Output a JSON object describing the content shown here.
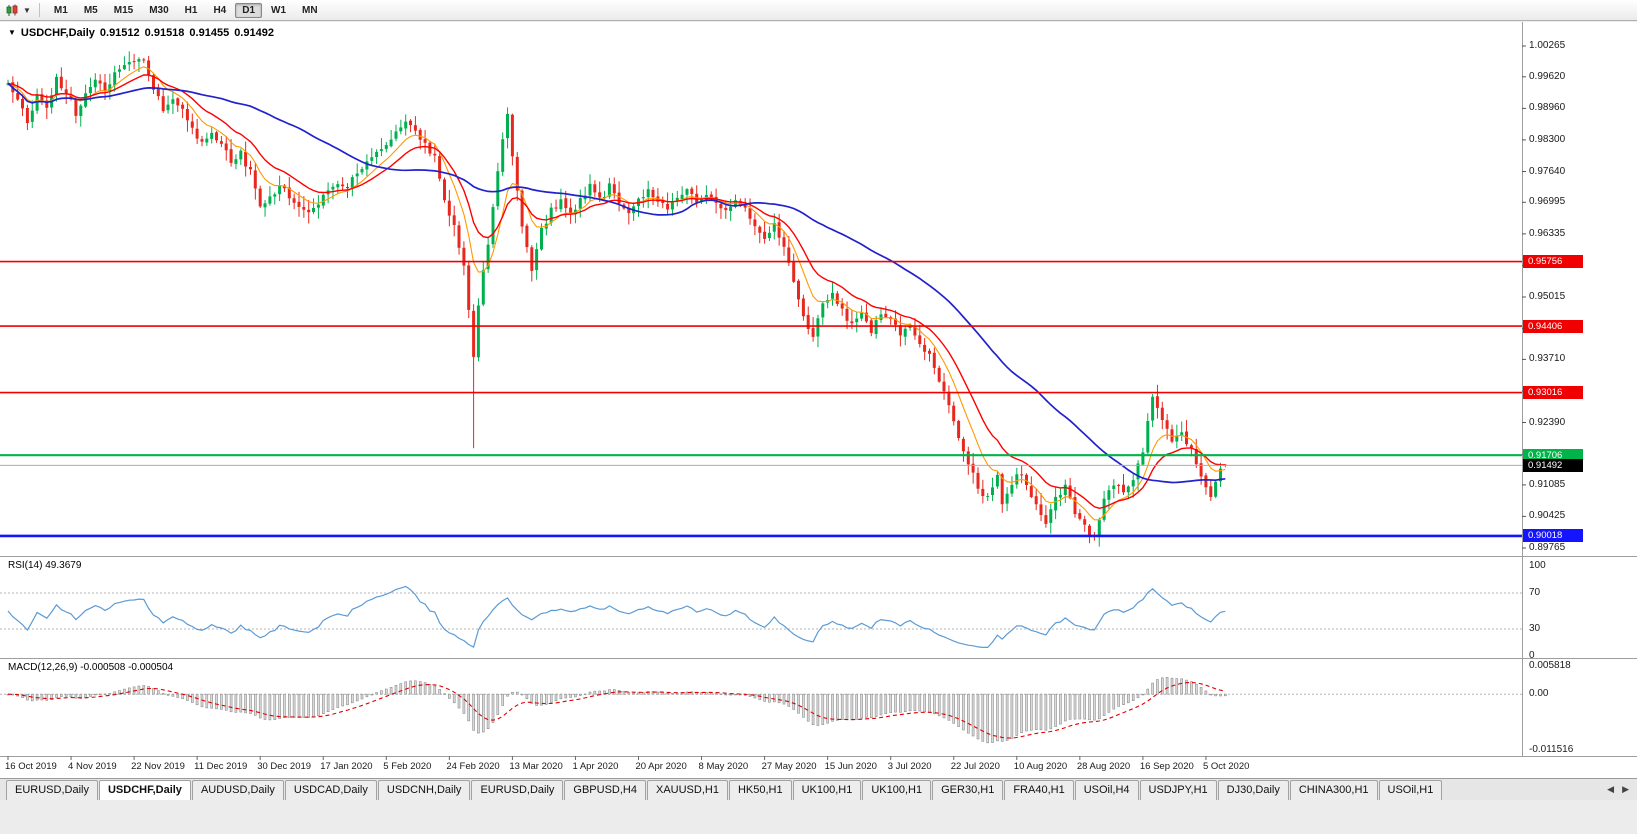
{
  "toolbar": {
    "timeframes": [
      "M1",
      "M5",
      "M15",
      "M30",
      "H1",
      "H4",
      "D1",
      "W1",
      "MN"
    ],
    "active_timeframe": "D1"
  },
  "chart": {
    "title": {
      "symbol": "USDCHF,Daily",
      "open": "0.91512",
      "high": "0.91518",
      "low": "0.91455",
      "close": "0.91492"
    },
    "price_axis": [
      "1.00265",
      "0.99620",
      "0.98960",
      "0.98300",
      "0.97640",
      "0.96995",
      "0.96335",
      "0.95675",
      "0.95015",
      "0.94355",
      "0.93710",
      "0.93050",
      "0.92390",
      "0.91730",
      "0.91085",
      "0.90425",
      "0.89765"
    ],
    "hlines": [
      {
        "label": "0.95756",
        "price": 0.95756,
        "color": "#F00000",
        "width": 1.6
      },
      {
        "label": "0.94406",
        "price": 0.94406,
        "color": "#F00000",
        "width": 1.6
      },
      {
        "label": "0.93016",
        "price": 0.93016,
        "color": "#F00000",
        "width": 1.6
      },
      {
        "label": "0.91706",
        "price": 0.91706,
        "color": "#00B44A",
        "width": 2.2
      },
      {
        "label": "0.90018",
        "price": 0.90018,
        "color": "#1414FF",
        "width": 2.6
      }
    ],
    "current_price": {
      "label": "0.91492",
      "price": 0.91492,
      "tag_bg": "#000000",
      "line_color": "#ABABAB"
    },
    "date_axis": [
      {
        "i": 0,
        "label": "16 Oct 2019"
      },
      {
        "i": 13,
        "label": "4 Nov 2019"
      },
      {
        "i": 26,
        "label": "22 Nov 2019"
      },
      {
        "i": 39,
        "label": "11 Dec 2019"
      },
      {
        "i": 52,
        "label": "30 Dec 2019"
      },
      {
        "i": 65,
        "label": "17 Jan 2020"
      },
      {
        "i": 78,
        "label": "5 Feb 2020"
      },
      {
        "i": 91,
        "label": "24 Feb 2020"
      },
      {
        "i": 104,
        "label": "13 Mar 2020"
      },
      {
        "i": 117,
        "label": "1 Apr 2020"
      },
      {
        "i": 130,
        "label": "20 Apr 2020"
      },
      {
        "i": 143,
        "label": "8 May 2020"
      },
      {
        "i": 156,
        "label": "27 May 2020"
      },
      {
        "i": 169,
        "label": "15 Jun 2020"
      },
      {
        "i": 182,
        "label": "3 Jul 2020"
      },
      {
        "i": 195,
        "label": "22 Jul 2020"
      },
      {
        "i": 208,
        "label": "10 Aug 2020"
      },
      {
        "i": 221,
        "label": "28 Aug 2020"
      },
      {
        "i": 234,
        "label": "16 Sep 2020"
      },
      {
        "i": 247,
        "label": "5 Oct 2020"
      }
    ]
  },
  "rsi": {
    "label": "RSI(14) 49.3679",
    "scale": [
      "100",
      "70",
      "30",
      "0"
    ],
    "levels": [
      70,
      30
    ],
    "color": "#5B9BD5"
  },
  "macd": {
    "label": "MACD(12,26,9) -0.000508 -0.000504",
    "scale_top": "0.005818",
    "scale_zero": "0.00",
    "scale_bottom": "-0.011516",
    "hist_fill": "#DADADA",
    "hist_stroke": "#8E8E8E",
    "signal_color": "#E00000"
  },
  "tabs": {
    "active_index": 1,
    "items": [
      "EURUSD,Daily",
      "USDCHF,Daily",
      "AUDUSD,Daily",
      "USDCAD,Daily",
      "USDCNH,Daily",
      "EURUSD,Daily",
      "GBPUSD,H4",
      "XAUUSD,H1",
      "HK50,H1",
      "UK100,H1",
      "UK100,H1",
      "GER30,H1",
      "FRA40,H1",
      "USOil,H4",
      "USDJPY,H1",
      "DJ30,Daily",
      "CHINA300,H1",
      "USOil,H1"
    ],
    "scroll_left": "◀",
    "scroll_right": "▶"
  },
  "chart_data": {
    "type": "candlestick",
    "symbol": "USDCHF",
    "timeframe": "Daily",
    "num_candles": 252,
    "y_range": [
      0.89765,
      1.00265
    ],
    "last_candle": {
      "open": 0.91512,
      "high": 0.91518,
      "low": 0.91455,
      "close": 0.91492
    },
    "price_anchors": [
      [
        0,
        0.995
      ],
      [
        2,
        0.9908
      ],
      [
        4,
        0.9872
      ],
      [
        6,
        0.9918
      ],
      [
        8,
        0.9895
      ],
      [
        10,
        0.9958
      ],
      [
        12,
        0.9932
      ],
      [
        14,
        0.9885
      ],
      [
        16,
        0.9928
      ],
      [
        18,
        0.9962
      ],
      [
        20,
        0.993
      ],
      [
        22,
        0.9968
      ],
      [
        24,
        0.9988
      ],
      [
        26,
        0.9998
      ],
      [
        28,
        0.9992
      ],
      [
        30,
        0.9935
      ],
      [
        32,
        0.9895
      ],
      [
        34,
        0.9918
      ],
      [
        36,
        0.9892
      ],
      [
        38,
        0.9855
      ],
      [
        40,
        0.9825
      ],
      [
        42,
        0.9848
      ],
      [
        44,
        0.9822
      ],
      [
        46,
        0.9785
      ],
      [
        48,
        0.9802
      ],
      [
        50,
        0.9762
      ],
      [
        52,
        0.9688
      ],
      [
        54,
        0.9705
      ],
      [
        56,
        0.9732
      ],
      [
        58,
        0.9712
      ],
      [
        60,
        0.9692
      ],
      [
        62,
        0.9672
      ],
      [
        64,
        0.9702
      ],
      [
        66,
        0.9718
      ],
      [
        68,
        0.9742
      ],
      [
        70,
        0.9732
      ],
      [
        72,
        0.9762
      ],
      [
        74,
        0.9782
      ],
      [
        76,
        0.9802
      ],
      [
        78,
        0.9822
      ],
      [
        80,
        0.9852
      ],
      [
        82,
        0.9872
      ],
      [
        84,
        0.9848
      ],
      [
        86,
        0.9822
      ],
      [
        88,
        0.9792
      ],
      [
        90,
        0.9702
      ],
      [
        92,
        0.9652
      ],
      [
        94,
        0.9562
      ],
      [
        95,
        0.9482
      ],
      [
        96,
        0.9382
      ],
      [
        97,
        0.9482
      ],
      [
        98,
        0.9562
      ],
      [
        99,
        0.9612
      ],
      [
        100,
        0.9682
      ],
      [
        101,
        0.9762
      ],
      [
        102,
        0.9832
      ],
      [
        103,
        0.9878
      ],
      [
        104,
        0.9802
      ],
      [
        105,
        0.9722
      ],
      [
        106,
        0.9652
      ],
      [
        107,
        0.9602
      ],
      [
        108,
        0.9562
      ],
      [
        109,
        0.9602
      ],
      [
        110,
        0.9642
      ],
      [
        112,
        0.9682
      ],
      [
        114,
        0.9702
      ],
      [
        116,
        0.9672
      ],
      [
        118,
        0.9702
      ],
      [
        120,
        0.9732
      ],
      [
        122,
        0.9702
      ],
      [
        124,
        0.9732
      ],
      [
        126,
        0.9702
      ],
      [
        128,
        0.9682
      ],
      [
        130,
        0.9702
      ],
      [
        132,
        0.9732
      ],
      [
        134,
        0.9702
      ],
      [
        136,
        0.9682
      ],
      [
        138,
        0.9712
      ],
      [
        140,
        0.9732
      ],
      [
        142,
        0.9702
      ],
      [
        144,
        0.9722
      ],
      [
        146,
        0.9702
      ],
      [
        148,
        0.9682
      ],
      [
        150,
        0.9702
      ],
      [
        152,
        0.9682
      ],
      [
        154,
        0.9652
      ],
      [
        156,
        0.9622
      ],
      [
        158,
        0.9652
      ],
      [
        160,
        0.9602
      ],
      [
        162,
        0.9532
      ],
      [
        164,
        0.9462
      ],
      [
        166,
        0.9422
      ],
      [
        168,
        0.9482
      ],
      [
        170,
        0.9512
      ],
      [
        172,
        0.9472
      ],
      [
        174,
        0.9442
      ],
      [
        176,
        0.9462
      ],
      [
        178,
        0.9432
      ],
      [
        180,
        0.9472
      ],
      [
        182,
        0.9452
      ],
      [
        184,
        0.9422
      ],
      [
        186,
        0.9442
      ],
      [
        188,
        0.9402
      ],
      [
        190,
        0.9382
      ],
      [
        192,
        0.9332
      ],
      [
        194,
        0.9282
      ],
      [
        196,
        0.9202
      ],
      [
        198,
        0.9152
      ],
      [
        200,
        0.9102
      ],
      [
        202,
        0.9082
      ],
      [
        204,
        0.9122
      ],
      [
        205,
        0.9062
      ],
      [
        206,
        0.9092
      ],
      [
        208,
        0.9132
      ],
      [
        210,
        0.9112
      ],
      [
        212,
        0.9062
      ],
      [
        214,
        0.9032
      ],
      [
        216,
        0.9082
      ],
      [
        218,
        0.9102
      ],
      [
        220,
        0.9052
      ],
      [
        222,
        0.9022
      ],
      [
        224,
        0.8998
      ],
      [
        226,
        0.9082
      ],
      [
        228,
        0.9112
      ],
      [
        230,
        0.9092
      ],
      [
        232,
        0.9122
      ],
      [
        234,
        0.9182
      ],
      [
        236,
        0.9292
      ],
      [
        238,
        0.9242
      ],
      [
        240,
        0.9202
      ],
      [
        242,
        0.9212
      ],
      [
        244,
        0.9182
      ],
      [
        246,
        0.9122
      ],
      [
        248,
        0.9082
      ],
      [
        250,
        0.9142
      ],
      [
        251,
        0.91492
      ]
    ],
    "spikes": {
      "26": {
        "high": 1.001
      },
      "96": {
        "low": 0.9185
      },
      "103": {
        "high": 0.9898
      },
      "224": {
        "low": 0.8992
      }
    },
    "colors": {
      "up": "#00B050",
      "down": "#E8281E",
      "ma_fast": "#FF9900",
      "ma_mid": "#FF0000",
      "ma_slow": "#2222CC"
    },
    "moving_averages": [
      {
        "period": 8,
        "key": "ma_fast"
      },
      {
        "period": 16,
        "key": "ma_mid"
      },
      {
        "period": 45,
        "key": "ma_slow"
      }
    ],
    "rsi_period": 14,
    "macd_params": {
      "fast": 12,
      "slow": 26,
      "signal": 9
    },
    "macd_range": [
      -0.0115,
      0.0058
    ]
  }
}
